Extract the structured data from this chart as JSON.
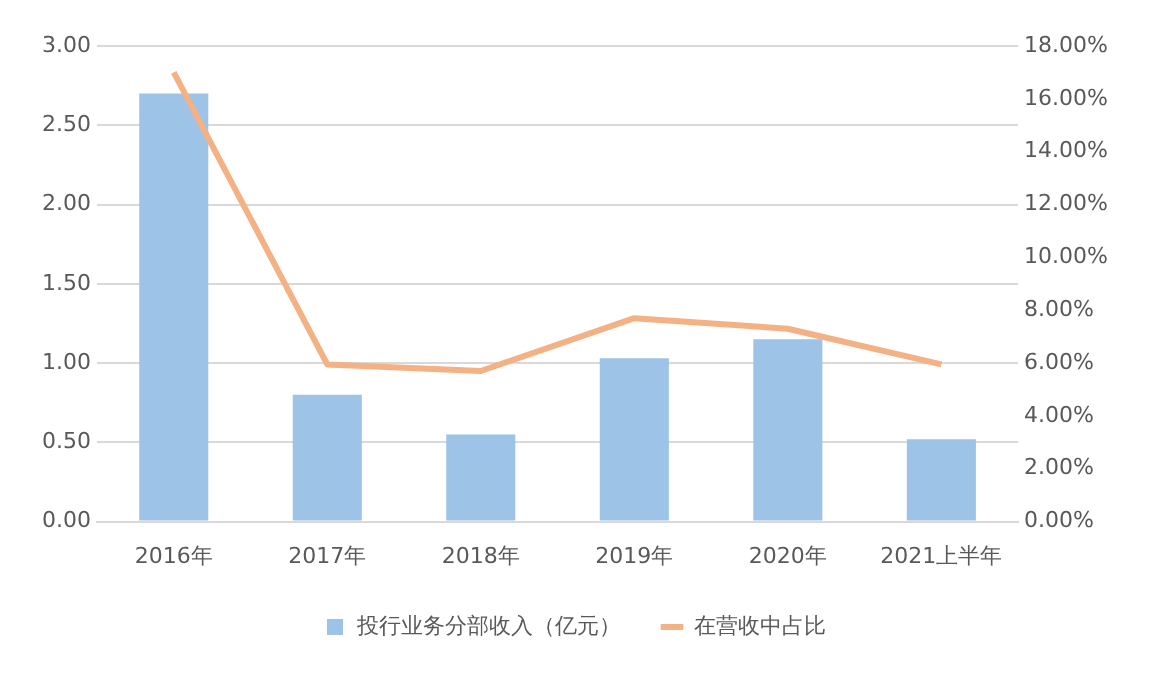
{
  "chart_data": {
    "type": "bar",
    "categories": [
      "2016年",
      "2017年",
      "2018年",
      "2019年",
      "2020年",
      "2021上半年"
    ],
    "series": [
      {
        "name": "投行业务分部收入（亿元）",
        "color": "#9dc3e6",
        "values": [
          2.7,
          0.8,
          0.55,
          1.03,
          1.15,
          0.52
        ]
      },
      {
        "name": "在营收中占比",
        "type": "line",
        "axis": "y2",
        "color": "#f4b183",
        "values": [
          17.0,
          5.95,
          5.7,
          7.7,
          7.3,
          5.95
        ]
      }
    ],
    "ylim": [
      0,
      3
    ],
    "yticks": [
      {
        "value": 0,
        "label": "0.00"
      },
      {
        "value": 0.5,
        "label": "0.50"
      },
      {
        "value": 1,
        "label": "1.00"
      },
      {
        "value": 1.5,
        "label": "1.50"
      },
      {
        "value": 2,
        "label": "2.00"
      },
      {
        "value": 2.5,
        "label": "2.50"
      },
      {
        "value": 3,
        "label": "3.00"
      }
    ],
    "y2lim": [
      0,
      18
    ],
    "y2ticks": [
      {
        "value": 0,
        "label": "0.00%"
      },
      {
        "value": 2,
        "label": "2.00%"
      },
      {
        "value": 4,
        "label": "4.00%"
      },
      {
        "value": 6,
        "label": "6.00%"
      },
      {
        "value": 8,
        "label": "8.00%"
      },
      {
        "value": 10,
        "label": "10.00%"
      },
      {
        "value": 12,
        "label": "12.00%"
      },
      {
        "value": 14,
        "label": "14.00%"
      },
      {
        "value": 16,
        "label": "16.00%"
      },
      {
        "value": 18,
        "label": "18.00%"
      }
    ],
    "grid": "y",
    "legend": "bottom",
    "marker": "none",
    "line_style": "solid"
  }
}
